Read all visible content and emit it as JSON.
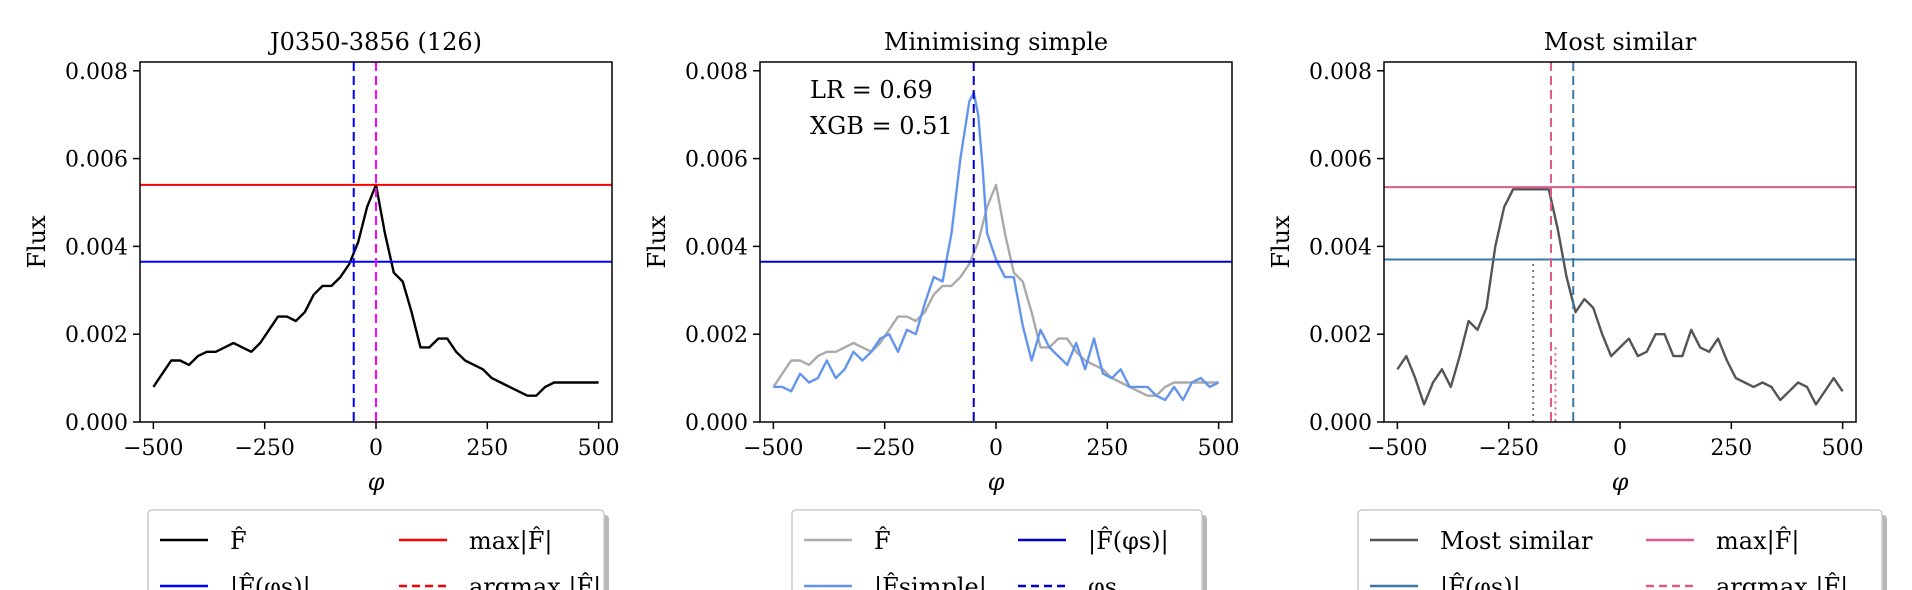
{
  "chart_data": [
    {
      "type": "line",
      "title": "J0350-3856 (126)",
      "xlabel": "φ",
      "ylabel": "Flux",
      "xlim": [
        -530,
        530
      ],
      "ylim": [
        0,
        0.0082
      ],
      "xticks": [
        -500,
        -250,
        0,
        250,
        500
      ],
      "xtick_labels": [
        "−500",
        "−250",
        "0",
        "250",
        "500"
      ],
      "yticks": [
        0,
        0.002,
        0.004,
        0.006,
        0.008
      ],
      "ytick_labels": [
        "0.000",
        "0.002",
        "0.004",
        "0.006",
        "0.008"
      ],
      "grid": false,
      "annotation": [],
      "series": [
        {
          "name": "F̂",
          "color": "#000000",
          "style": "solid",
          "x": [
            -500,
            -480,
            -460,
            -440,
            -420,
            -400,
            -380,
            -360,
            -340,
            -320,
            -300,
            -280,
            -260,
            -240,
            -220,
            -200,
            -180,
            -160,
            -140,
            -120,
            -100,
            -80,
            -60,
            -40,
            -20,
            0,
            20,
            40,
            60,
            80,
            100,
            120,
            140,
            160,
            180,
            200,
            220,
            240,
            260,
            280,
            300,
            320,
            340,
            360,
            380,
            400,
            420,
            440,
            460,
            480,
            500
          ],
          "y": [
            0.0008,
            0.0011,
            0.0014,
            0.0014,
            0.0013,
            0.0015,
            0.0016,
            0.0016,
            0.0017,
            0.0018,
            0.0017,
            0.0016,
            0.0018,
            0.0021,
            0.0024,
            0.0024,
            0.0023,
            0.0025,
            0.0029,
            0.0031,
            0.0031,
            0.0033,
            0.0036,
            0.0041,
            0.0049,
            0.0054,
            0.0043,
            0.0034,
            0.0032,
            0.0025,
            0.0017,
            0.0017,
            0.0019,
            0.0019,
            0.0016,
            0.0014,
            0.0013,
            0.0012,
            0.001,
            0.0009,
            0.0008,
            0.0007,
            0.0006,
            0.0006,
            0.0008,
            0.0009,
            0.0009,
            0.0009,
            0.0009,
            0.0009,
            0.0009
          ]
        },
        {
          "name": "|F̂(φs)|",
          "color": "#0000ff",
          "style": "hline",
          "y": 0.00365
        },
        {
          "name": "max|F̂|",
          "color": "#ff0000",
          "style": "hline",
          "y": 0.0054
        },
        {
          "name": "argmax |F̂|",
          "color": "#ff0000",
          "style": "vdash",
          "x": 0
        },
        {
          "name": "φs",
          "color": "#0000ff",
          "style": "vdash",
          "x": -50
        },
        {
          "name": "",
          "color": "#ff00ff",
          "style": "vdash",
          "x": 0
        }
      ],
      "legend": {
        "placement": "below",
        "entries": [
          {
            "label": "F̂",
            "color": "#000000",
            "style": "solid"
          },
          {
            "label": "max|F̂|",
            "color": "#ff0000",
            "style": "solid"
          },
          {
            "label": "|F̂(φs)|",
            "color": "#0000ff",
            "style": "solid"
          },
          {
            "label": "argmax |F̂|",
            "color": "#ff0000",
            "style": "dash"
          }
        ]
      }
    },
    {
      "type": "line",
      "title": "Minimising simple",
      "xlabel": "φ",
      "ylabel": "Flux",
      "xlim": [
        -530,
        530
      ],
      "ylim": [
        0,
        0.0082
      ],
      "xticks": [
        -500,
        -250,
        0,
        250,
        500
      ],
      "xtick_labels": [
        "−500",
        "−250",
        "0",
        "250",
        "500"
      ],
      "yticks": [
        0,
        0.002,
        0.004,
        0.006,
        0.008
      ],
      "ytick_labels": [
        "0.000",
        "0.002",
        "0.004",
        "0.006",
        "0.008"
      ],
      "grid": false,
      "annotation": [
        "LR = 0.69",
        "XGB = 0.51"
      ],
      "series": [
        {
          "name": "F̂",
          "color": "#aaaaaa",
          "style": "solid",
          "x": [
            -500,
            -480,
            -460,
            -440,
            -420,
            -400,
            -380,
            -360,
            -340,
            -320,
            -300,
            -280,
            -260,
            -240,
            -220,
            -200,
            -180,
            -160,
            -140,
            -120,
            -100,
            -80,
            -60,
            -40,
            -20,
            0,
            20,
            40,
            60,
            80,
            100,
            120,
            140,
            160,
            180,
            200,
            220,
            240,
            260,
            280,
            300,
            320,
            340,
            360,
            380,
            400,
            420,
            440,
            460,
            480,
            500
          ],
          "y": [
            0.0008,
            0.0011,
            0.0014,
            0.0014,
            0.0013,
            0.0015,
            0.0016,
            0.0016,
            0.0017,
            0.0018,
            0.0017,
            0.0016,
            0.0018,
            0.0021,
            0.0024,
            0.0024,
            0.0023,
            0.0025,
            0.0029,
            0.0031,
            0.0031,
            0.0033,
            0.0036,
            0.0041,
            0.0049,
            0.0054,
            0.0043,
            0.0034,
            0.0032,
            0.0025,
            0.0017,
            0.0017,
            0.0019,
            0.0019,
            0.0016,
            0.0014,
            0.0013,
            0.0012,
            0.001,
            0.0009,
            0.0008,
            0.0007,
            0.0006,
            0.0006,
            0.0008,
            0.0009,
            0.0009,
            0.0009,
            0.0009,
            0.0009,
            0.0009
          ]
        },
        {
          "name": "|F̂simple|",
          "color": "#6495ed",
          "style": "solid",
          "x": [
            -500,
            -480,
            -460,
            -440,
            -420,
            -400,
            -380,
            -360,
            -340,
            -320,
            -300,
            -280,
            -260,
            -240,
            -220,
            -200,
            -180,
            -160,
            -140,
            -120,
            -100,
            -80,
            -60,
            -50,
            -40,
            -30,
            -20,
            0,
            20,
            40,
            60,
            80,
            100,
            120,
            140,
            160,
            180,
            200,
            220,
            240,
            260,
            280,
            300,
            320,
            340,
            360,
            380,
            400,
            420,
            440,
            460,
            480,
            500
          ],
          "y": [
            0.0008,
            0.0008,
            0.0007,
            0.0011,
            0.0009,
            0.001,
            0.0014,
            0.001,
            0.0012,
            0.0016,
            0.0014,
            0.0016,
            0.0019,
            0.002,
            0.0016,
            0.0021,
            0.002,
            0.0027,
            0.0033,
            0.0032,
            0.0043,
            0.006,
            0.0073,
            0.0075,
            0.007,
            0.0058,
            0.0043,
            0.0037,
            0.0033,
            0.0033,
            0.0022,
            0.0014,
            0.0021,
            0.0017,
            0.0015,
            0.0013,
            0.0018,
            0.0012,
            0.0019,
            0.0011,
            0.001,
            0.0012,
            0.0008,
            0.0008,
            0.0008,
            0.0006,
            0.0005,
            0.0008,
            0.0005,
            0.0009,
            0.001,
            0.0008,
            0.0009
          ]
        },
        {
          "name": "|F̂(φs)|",
          "color": "#0000cc",
          "style": "hline",
          "y": 0.00365
        },
        {
          "name": "φs",
          "color": "#0000cc",
          "style": "vdash",
          "x": -50
        }
      ],
      "legend": {
        "placement": "below",
        "entries": [
          {
            "label": "F̂",
            "color": "#aaaaaa",
            "style": "solid"
          },
          {
            "label": "|F̂(φs)|",
            "color": "#0000cc",
            "style": "solid"
          },
          {
            "label": "|F̂simple|",
            "color": "#6495ed",
            "style": "solid"
          },
          {
            "label": "φs",
            "color": "#0000cc",
            "style": "dash"
          }
        ]
      }
    },
    {
      "type": "line",
      "title": "Most similar",
      "xlabel": "φ",
      "ylabel": "Flux",
      "xlim": [
        -530,
        530
      ],
      "ylim": [
        0,
        0.0082
      ],
      "xticks": [
        -500,
        -250,
        0,
        250,
        500
      ],
      "xtick_labels": [
        "−500",
        "−250",
        "0",
        "250",
        "500"
      ],
      "yticks": [
        0,
        0.002,
        0.004,
        0.006,
        0.008
      ],
      "ytick_labels": [
        "0.000",
        "0.002",
        "0.004",
        "0.006",
        "0.008"
      ],
      "grid": false,
      "annotation": [],
      "series": [
        {
          "name": "Most similar",
          "color": "#555555",
          "style": "solid",
          "x": [
            -500,
            -480,
            -460,
            -440,
            -420,
            -400,
            -380,
            -360,
            -340,
            -320,
            -300,
            -280,
            -260,
            -240,
            -220,
            -200,
            -180,
            -160,
            -140,
            -120,
            -100,
            -80,
            -60,
            -40,
            -20,
            0,
            20,
            40,
            60,
            80,
            100,
            120,
            140,
            160,
            180,
            200,
            220,
            240,
            260,
            280,
            300,
            320,
            340,
            360,
            380,
            400,
            420,
            440,
            460,
            480,
            500
          ],
          "y": [
            0.0012,
            0.0015,
            0.001,
            0.0004,
            0.0009,
            0.0012,
            0.0008,
            0.0015,
            0.0023,
            0.0021,
            0.0026,
            0.004,
            0.0049,
            0.0053,
            0.0053,
            0.0053,
            0.0053,
            0.0053,
            0.0044,
            0.0033,
            0.0025,
            0.0028,
            0.0026,
            0.002,
            0.0015,
            0.0017,
            0.0019,
            0.0015,
            0.0016,
            0.002,
            0.002,
            0.0015,
            0.0015,
            0.0021,
            0.0017,
            0.0016,
            0.0019,
            0.0014,
            0.001,
            0.0009,
            0.0008,
            0.0009,
            0.0008,
            0.0005,
            0.0007,
            0.0009,
            0.0008,
            0.0004,
            0.0007,
            0.001,
            0.0007
          ]
        },
        {
          "name": "|F̂(φs)|",
          "color": "#3a78a8",
          "style": "hline",
          "y": 0.0037
        },
        {
          "name": "max|F̂|",
          "color": "#e05a8a",
          "style": "hline",
          "y": 0.00535
        },
        {
          "name": "argmax |F̂|",
          "color": "#e05a8a",
          "style": "vdash",
          "x": -155
        },
        {
          "name": "φs",
          "color": "#3a78a8",
          "style": "vdash",
          "x": -105
        },
        {
          "name": "",
          "color": "#777777",
          "style": "vdot",
          "x": -195,
          "ymax": 0.0036
        },
        {
          "name": "",
          "color": "#e05a8a",
          "style": "vdot",
          "x": -145,
          "ymax": 0.0017
        }
      ],
      "legend": {
        "placement": "below",
        "entries": [
          {
            "label": "Most similar",
            "color": "#555555",
            "style": "solid"
          },
          {
            "label": "max|F̂|",
            "color": "#e05a8a",
            "style": "solid"
          },
          {
            "label": "|F̂(φs)|",
            "color": "#3a78a8",
            "style": "solid"
          },
          {
            "label": "argmax |F̂|",
            "color": "#e05a8a",
            "style": "dash"
          }
        ]
      }
    }
  ]
}
